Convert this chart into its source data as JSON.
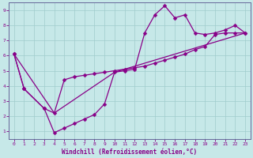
{
  "xlabel": "Windchill (Refroidissement éolien,°C)",
  "bg_color": "#c6e8e8",
  "grid_color": "#a0cccc",
  "line_color": "#880088",
  "spine_color": "#666699",
  "xlim": [
    -0.5,
    23.5
  ],
  "ylim": [
    0.5,
    9.5
  ],
  "xticks": [
    0,
    1,
    2,
    3,
    4,
    5,
    6,
    7,
    8,
    9,
    10,
    11,
    12,
    13,
    14,
    15,
    16,
    17,
    18,
    19,
    20,
    21,
    22,
    23
  ],
  "yticks": [
    1,
    2,
    3,
    4,
    5,
    6,
    7,
    8,
    9
  ],
  "line1_x": [
    0,
    1,
    3,
    4,
    5,
    6,
    7,
    8,
    9,
    10,
    11,
    12,
    13,
    14,
    15,
    16,
    17,
    18,
    19,
    20,
    21,
    22,
    23
  ],
  "line1_y": [
    6.1,
    3.8,
    2.5,
    0.9,
    1.2,
    1.5,
    1.8,
    2.1,
    2.8,
    4.9,
    5.0,
    5.1,
    7.5,
    8.7,
    9.3,
    8.5,
    8.7,
    7.5,
    7.4,
    7.5,
    7.7,
    8.0,
    7.5
  ],
  "line2_x": [
    0,
    1,
    3,
    4,
    5,
    6,
    7,
    8,
    9,
    10,
    11,
    12,
    13,
    14,
    15,
    16,
    17,
    18,
    19,
    20,
    21,
    22,
    23
  ],
  "line2_y": [
    6.1,
    3.8,
    2.5,
    2.2,
    4.4,
    4.6,
    4.7,
    4.8,
    4.9,
    5.0,
    5.1,
    5.2,
    5.3,
    5.5,
    5.7,
    5.9,
    6.1,
    6.4,
    6.6,
    7.4,
    7.5,
    7.5,
    7.5
  ],
  "line3_x": [
    0,
    4,
    10,
    23
  ],
  "line3_y": [
    6.1,
    2.2,
    4.9,
    7.5
  ]
}
